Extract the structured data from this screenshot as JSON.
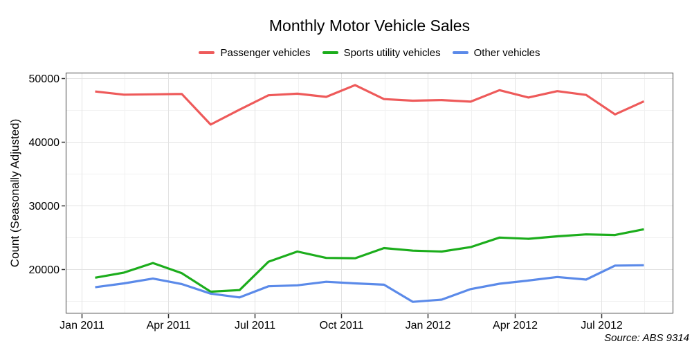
{
  "chart_data": {
    "type": "line",
    "title": "Monthly Motor Vehicle Sales",
    "ylabel": "Count (Seasonally Adjusted)",
    "xlabel": "",
    "annotation": "Source: ABS 9314",
    "legend_position": "top",
    "grid": true,
    "x": [
      "Jan 2011",
      "Feb 2011",
      "Mar 2011",
      "Apr 2011",
      "May 2011",
      "Jun 2011",
      "Jul 2011",
      "Aug 2011",
      "Sep 2011",
      "Oct 2011",
      "Nov 2011",
      "Dec 2011",
      "Jan 2012",
      "Feb 2012",
      "Mar 2012",
      "Apr 2012",
      "May 2012",
      "Jun 2012",
      "Jul 2012",
      "Aug 2012"
    ],
    "x_tick_labels": [
      "Jan 2011",
      "Apr 2011",
      "Jul 2011",
      "Oct 2011",
      "Jan 2012",
      "Apr 2012",
      "Jul 2012"
    ],
    "x_tick_month_index": [
      0,
      3,
      6,
      9,
      12,
      15,
      18
    ],
    "y_ticks": [
      20000,
      30000,
      40000,
      50000
    ],
    "y_minor_ticks": [
      15000,
      25000,
      35000,
      45000
    ],
    "ylim": [
      13000,
      50900
    ],
    "series": [
      {
        "name": "Passenger vehicles",
        "color": "#ee5a5a",
        "values": [
          47950,
          47450,
          47500,
          47550,
          42750,
          45100,
          47350,
          47600,
          47100,
          48950,
          46750,
          46500,
          46600,
          46350,
          48150,
          47000,
          48000,
          47400,
          44350,
          46400
        ]
      },
      {
        "name": "Sports utility vehicles",
        "color": "#1cad1c",
        "values": [
          18700,
          19500,
          21000,
          19400,
          16500,
          16750,
          21200,
          22800,
          21800,
          21750,
          23350,
          22950,
          22800,
          23500,
          25000,
          24800,
          25200,
          25500,
          25400,
          26300
        ]
      },
      {
        "name": "Other vehicles",
        "color": "#5b8ae9",
        "values": [
          17200,
          17800,
          18550,
          17700,
          16200,
          15600,
          17350,
          17500,
          18050,
          17800,
          17600,
          14900,
          15250,
          16900,
          17750,
          18250,
          18800,
          18400,
          20600,
          20650
        ]
      }
    ],
    "colors": {
      "major_grid": "#e3e3e3",
      "minor_grid": "#f1f1f1",
      "panel_border": "#666666",
      "tick_mark": "#333333"
    }
  }
}
